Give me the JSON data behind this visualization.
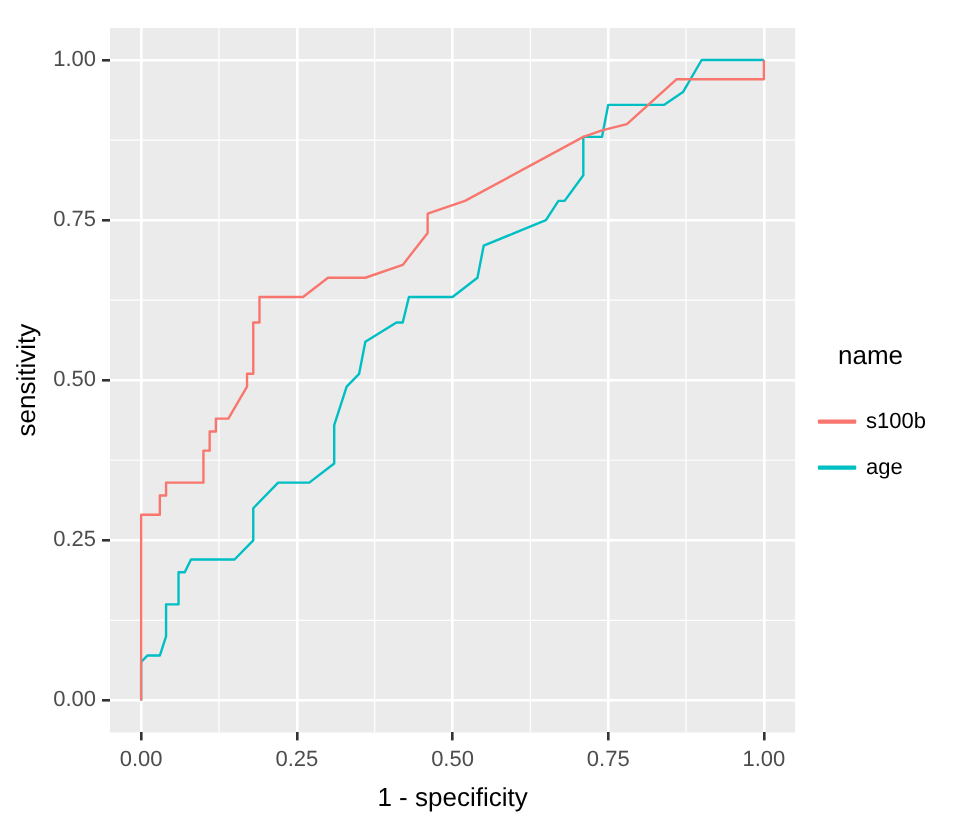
{
  "chart_data": {
    "type": "line",
    "xlabel": "1 - specificity",
    "ylabel": "sensitivity",
    "legend_title": "name",
    "legend": "right",
    "grid": true,
    "marker": "none",
    "line_style": "solid",
    "xlim": [
      -0.05,
      1.05
    ],
    "ylim": [
      -0.05,
      1.05
    ],
    "xticks": [
      {
        "value": 0,
        "label": "0.00"
      },
      {
        "value": 0.25,
        "label": "0.25"
      },
      {
        "value": 0.5,
        "label": "0.50"
      },
      {
        "value": 0.75,
        "label": "0.75"
      },
      {
        "value": 1,
        "label": "1.00"
      }
    ],
    "yticks": [
      {
        "value": 0,
        "label": "0.00"
      },
      {
        "value": 0.25,
        "label": "0.25"
      },
      {
        "value": 0.5,
        "label": "0.50"
      },
      {
        "value": 0.75,
        "label": "0.75"
      },
      {
        "value": 1,
        "label": "1.00"
      }
    ],
    "series": [
      {
        "name": "s100b",
        "color": "#f8766d",
        "x": [
          0,
          0,
          0.03,
          0.03,
          0.04,
          0.04,
          0.1,
          0.1,
          0.11,
          0.11,
          0.12,
          0.12,
          0.14,
          0.17,
          0.17,
          0.18,
          0.18,
          0.19,
          0.19,
          0.26,
          0.3,
          0.36,
          0.42,
          0.46,
          0.46,
          0.52,
          0.71,
          0.74,
          0.78,
          0.86,
          1,
          1
        ],
        "values": [
          0,
          0.29,
          0.29,
          0.32,
          0.32,
          0.34,
          0.34,
          0.39,
          0.39,
          0.42,
          0.42,
          0.44,
          0.44,
          0.49,
          0.51,
          0.51,
          0.59,
          0.59,
          0.63,
          0.63,
          0.66,
          0.66,
          0.68,
          0.73,
          0.76,
          0.78,
          0.88,
          0.89,
          0.9,
          0.97,
          0.97,
          1
        ]
      },
      {
        "name": "age",
        "color": "#00bfc4",
        "x": [
          0,
          0,
          0.01,
          0.03,
          0.04,
          0.04,
          0.06,
          0.06,
          0.07,
          0.08,
          0.15,
          0.18,
          0.18,
          0.22,
          0.27,
          0.31,
          0.31,
          0.33,
          0.35,
          0.36,
          0.41,
          0.42,
          0.43,
          0.5,
          0.54,
          0.55,
          0.6,
          0.65,
          0.67,
          0.68,
          0.71,
          0.71,
          0.74,
          0.75,
          0.84,
          0.87,
          0.9,
          1
        ],
        "values": [
          0,
          0.06,
          0.07,
          0.07,
          0.1,
          0.15,
          0.15,
          0.2,
          0.2,
          0.22,
          0.22,
          0.25,
          0.3,
          0.34,
          0.34,
          0.37,
          0.43,
          0.49,
          0.51,
          0.56,
          0.59,
          0.59,
          0.63,
          0.63,
          0.66,
          0.71,
          0.73,
          0.75,
          0.78,
          0.78,
          0.82,
          0.88,
          0.88,
          0.93,
          0.93,
          0.95,
          1,
          1
        ]
      }
    ]
  }
}
